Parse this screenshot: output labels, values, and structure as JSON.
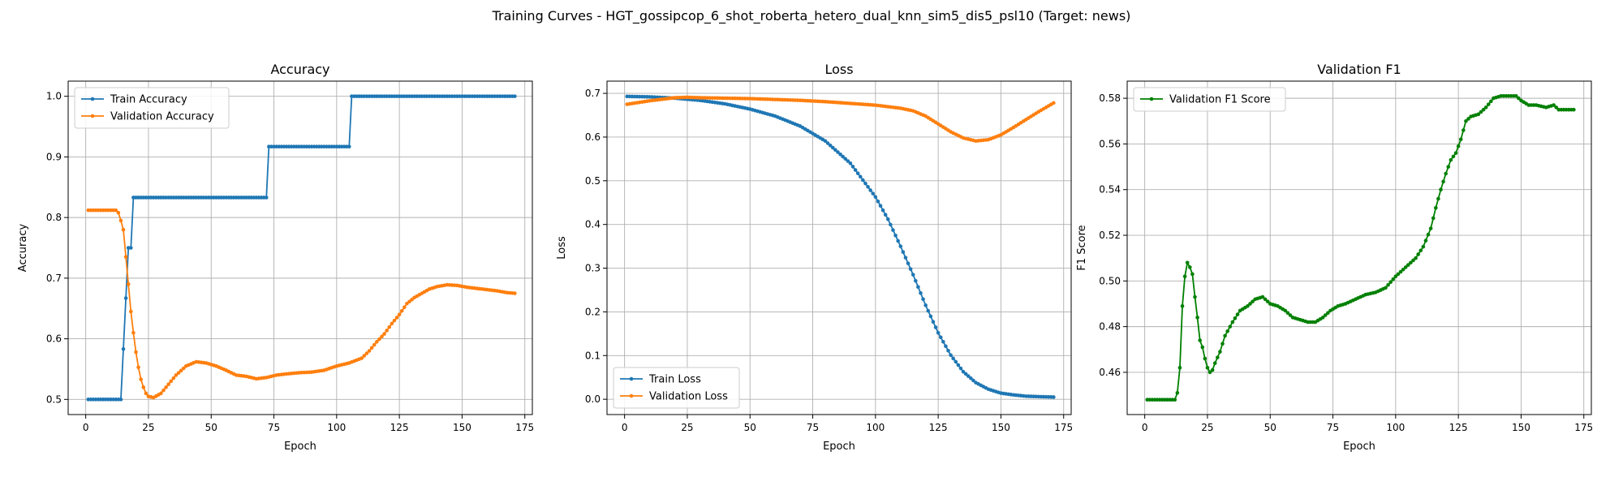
{
  "figure_title": "Training Curves - HGT_gossipcop_6_shot_roberta_hetero_dual_knn_sim5_dis5_psl10 (Target: news)",
  "colors": {
    "blue": "#1f77b4",
    "orange": "#ff7f0e",
    "green": "#008000"
  },
  "chart_data": [
    {
      "type": "line",
      "title": "Accuracy",
      "xlabel": "Epoch",
      "ylabel": "Accuracy",
      "xlim": [
        -7,
        178
      ],
      "ylim": [
        0.475,
        1.025
      ],
      "xticks": [
        0,
        25,
        50,
        75,
        100,
        125,
        150,
        175
      ],
      "yticks": [
        0.5,
        0.6,
        0.7,
        0.8,
        0.9,
        1.0
      ],
      "ytick_labels": [
        "0.5",
        "0.6",
        "0.7",
        "0.8",
        "0.9",
        "1.0"
      ],
      "grid": true,
      "legend": "upper-left",
      "series": [
        {
          "name": "Train Accuracy",
          "color": "#1f77b4",
          "keypoints": [
            [
              1,
              0.5
            ],
            [
              14,
              0.5
            ],
            [
              15,
              0.583
            ],
            [
              16,
              0.667
            ],
            [
              17,
              0.75
            ],
            [
              18,
              0.75
            ],
            [
              19,
              0.833
            ],
            [
              72,
              0.833
            ],
            [
              73,
              0.917
            ],
            [
              105,
              0.917
            ],
            [
              106,
              1.0
            ],
            [
              171,
              1.0
            ]
          ]
        },
        {
          "name": "Validation Accuracy",
          "color": "#ff7f0e",
          "keypoints": [
            [
              1,
              0.812
            ],
            [
              12,
              0.812
            ],
            [
              13,
              0.808
            ],
            [
              14,
              0.795
            ],
            [
              15,
              0.78
            ],
            [
              16,
              0.735
            ],
            [
              17,
              0.69
            ],
            [
              18,
              0.645
            ],
            [
              19,
              0.61
            ],
            [
              20,
              0.578
            ],
            [
              21,
              0.553
            ],
            [
              22,
              0.533
            ],
            [
              23,
              0.52
            ],
            [
              24,
              0.51
            ],
            [
              25,
              0.505
            ],
            [
              27,
              0.503
            ],
            [
              30,
              0.51
            ],
            [
              33,
              0.525
            ],
            [
              36,
              0.54
            ],
            [
              40,
              0.555
            ],
            [
              44,
              0.562
            ],
            [
              48,
              0.56
            ],
            [
              52,
              0.555
            ],
            [
              56,
              0.548
            ],
            [
              60,
              0.54
            ],
            [
              64,
              0.538
            ],
            [
              68,
              0.534
            ],
            [
              72,
              0.536
            ],
            [
              76,
              0.54
            ],
            [
              80,
              0.542
            ],
            [
              85,
              0.544
            ],
            [
              90,
              0.545
            ],
            [
              95,
              0.548
            ],
            [
              100,
              0.555
            ],
            [
              105,
              0.56
            ],
            [
              110,
              0.568
            ],
            [
              113,
              0.58
            ],
            [
              116,
              0.595
            ],
            [
              119,
              0.608
            ],
            [
              122,
              0.625
            ],
            [
              125,
              0.64
            ],
            [
              128,
              0.658
            ],
            [
              131,
              0.668
            ],
            [
              134,
              0.675
            ],
            [
              137,
              0.682
            ],
            [
              140,
              0.686
            ],
            [
              144,
              0.689
            ],
            [
              148,
              0.688
            ],
            [
              152,
              0.685
            ],
            [
              156,
              0.683
            ],
            [
              160,
              0.681
            ],
            [
              164,
              0.679
            ],
            [
              168,
              0.676
            ],
            [
              171,
              0.675
            ]
          ]
        }
      ]
    },
    {
      "type": "line",
      "title": "Loss",
      "xlabel": "Epoch",
      "ylabel": "Loss",
      "xlim": [
        -7,
        178
      ],
      "ylim": [
        -0.035,
        0.728
      ],
      "xticks": [
        0,
        25,
        50,
        75,
        100,
        125,
        150,
        175
      ],
      "yticks": [
        0,
        0.1,
        0.2,
        0.3,
        0.4,
        0.5,
        0.6,
        0.7
      ],
      "ytick_labels": [
        "0.0",
        "0.1",
        "0.2",
        "0.3",
        "0.4",
        "0.5",
        "0.6",
        "0.7"
      ],
      "grid": true,
      "legend": "lower-left",
      "series": [
        {
          "name": "Train Loss",
          "color": "#1f77b4",
          "keypoints": [
            [
              1,
              0.693
            ],
            [
              10,
              0.692
            ],
            [
              20,
              0.689
            ],
            [
              30,
              0.684
            ],
            [
              40,
              0.676
            ],
            [
              50,
              0.664
            ],
            [
              60,
              0.648
            ],
            [
              70,
              0.625
            ],
            [
              80,
              0.591
            ],
            [
              90,
              0.54
            ],
            [
              100,
              0.463
            ],
            [
              105,
              0.412
            ],
            [
              110,
              0.35
            ],
            [
              115,
              0.285
            ],
            [
              120,
              0.215
            ],
            [
              125,
              0.152
            ],
            [
              130,
              0.101
            ],
            [
              135,
              0.063
            ],
            [
              140,
              0.038
            ],
            [
              145,
              0.023
            ],
            [
              150,
              0.014
            ],
            [
              155,
              0.01
            ],
            [
              160,
              0.007
            ],
            [
              165,
              0.006
            ],
            [
              171,
              0.005
            ]
          ]
        },
        {
          "name": "Validation Loss",
          "color": "#ff7f0e",
          "keypoints": [
            [
              1,
              0.675
            ],
            [
              10,
              0.683
            ],
            [
              20,
              0.69
            ],
            [
              25,
              0.691
            ],
            [
              30,
              0.69
            ],
            [
              40,
              0.689
            ],
            [
              50,
              0.688
            ],
            [
              60,
              0.686
            ],
            [
              70,
              0.684
            ],
            [
              80,
              0.681
            ],
            [
              90,
              0.677
            ],
            [
              100,
              0.673
            ],
            [
              110,
              0.666
            ],
            [
              115,
              0.66
            ],
            [
              120,
              0.648
            ],
            [
              125,
              0.63
            ],
            [
              130,
              0.612
            ],
            [
              135,
              0.598
            ],
            [
              140,
              0.591
            ],
            [
              145,
              0.594
            ],
            [
              150,
              0.605
            ],
            [
              155,
              0.622
            ],
            [
              160,
              0.64
            ],
            [
              165,
              0.658
            ],
            [
              171,
              0.678
            ]
          ]
        }
      ]
    },
    {
      "type": "line",
      "title": "Validation F1",
      "xlabel": "Epoch",
      "ylabel": "F1 Score",
      "xlim": [
        -7,
        178
      ],
      "ylim": [
        0.4415,
        0.5875
      ],
      "xticks": [
        0,
        25,
        50,
        75,
        100,
        125,
        150,
        175
      ],
      "yticks": [
        0.46,
        0.48,
        0.5,
        0.52,
        0.54,
        0.56,
        0.58
      ],
      "ytick_labels": [
        "0.46",
        "0.48",
        "0.50",
        "0.52",
        "0.54",
        "0.56",
        "0.58"
      ],
      "grid": true,
      "legend": "upper-left",
      "series": [
        {
          "name": "Validation F1 Score",
          "color": "#008000",
          "keypoints": [
            [
              1,
              0.448
            ],
            [
              12,
              0.448
            ],
            [
              13,
              0.451
            ],
            [
              14,
              0.462
            ],
            [
              15,
              0.489
            ],
            [
              16,
              0.502
            ],
            [
              17,
              0.508
            ],
            [
              18,
              0.506
            ],
            [
              19,
              0.503
            ],
            [
              20,
              0.493
            ],
            [
              21,
              0.484
            ],
            [
              22,
              0.474
            ],
            [
              23,
              0.471
            ],
            [
              24,
              0.466
            ],
            [
              25,
              0.462
            ],
            [
              26,
              0.46
            ],
            [
              27,
              0.461
            ],
            [
              28,
              0.464
            ],
            [
              30,
              0.469
            ],
            [
              32,
              0.476
            ],
            [
              35,
              0.482
            ],
            [
              38,
              0.487
            ],
            [
              41,
              0.489
            ],
            [
              44,
              0.492
            ],
            [
              47,
              0.493
            ],
            [
              50,
              0.49
            ],
            [
              53,
              0.489
            ],
            [
              56,
              0.487
            ],
            [
              59,
              0.484
            ],
            [
              62,
              0.483
            ],
            [
              65,
              0.482
            ],
            [
              68,
              0.482
            ],
            [
              71,
              0.484
            ],
            [
              74,
              0.487
            ],
            [
              77,
              0.489
            ],
            [
              80,
              0.49
            ],
            [
              84,
              0.492
            ],
            [
              88,
              0.494
            ],
            [
              92,
              0.495
            ],
            [
              96,
              0.497
            ],
            [
              100,
              0.502
            ],
            [
              104,
              0.506
            ],
            [
              108,
              0.51
            ],
            [
              111,
              0.515
            ],
            [
              114,
              0.523
            ],
            [
              116,
              0.532
            ],
            [
              118,
              0.54
            ],
            [
              120,
              0.547
            ],
            [
              122,
              0.553
            ],
            [
              124,
              0.556
            ],
            [
              126,
              0.562
            ],
            [
              128,
              0.57
            ],
            [
              130,
              0.572
            ],
            [
              133,
              0.573
            ],
            [
              136,
              0.576
            ],
            [
              139,
              0.58
            ],
            [
              142,
              0.581
            ],
            [
              145,
              0.581
            ],
            [
              148,
              0.581
            ],
            [
              150,
              0.579
            ],
            [
              153,
              0.577
            ],
            [
              156,
              0.577
            ],
            [
              160,
              0.576
            ],
            [
              163,
              0.577
            ],
            [
              165,
              0.575
            ],
            [
              168,
              0.575
            ],
            [
              171,
              0.575
            ]
          ]
        }
      ]
    }
  ]
}
